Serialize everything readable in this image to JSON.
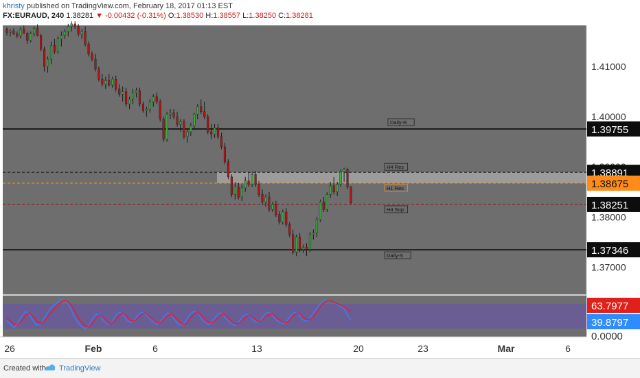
{
  "header": {
    "user": "khristy",
    "published": "published on TradingView.com, February 18, 2017 01:13 EST",
    "symbol": "FX:EURAUD, 240",
    "last": "1.38281",
    "change": "-0.00432 (-0.31%)",
    "o_label": "O:",
    "o": "1.38530",
    "h_label": "H:",
    "h": "1.38557",
    "l_label": "L:",
    "l": "1.38250",
    "c_label": "C:",
    "c": "1.38281"
  },
  "footer": {
    "created": "Created with",
    "brand": "TradingView"
  },
  "colors": {
    "background": "#6e6e6e",
    "up": "#3fa83f",
    "down": "#b01515",
    "wick": "#1a1a1a",
    "orange": "#ff8c1a",
    "stoch_k": "#3b7bff",
    "stoch_d": "#e01e3c",
    "stoch_band": "#6a5a9a"
  },
  "chart_data": {
    "type": "candlestick",
    "symbol": "FX:EURAUD",
    "timeframe": "240",
    "ylim": [
      1.367,
      1.418
    ],
    "y_ticks": [
      "1.41000",
      "1.40000",
      "1.39000",
      "1.38000",
      "1.37000"
    ],
    "x_ticks": [
      "26",
      "Feb",
      "6",
      "13",
      "20",
      "23",
      "Mar",
      "6"
    ],
    "price_labels": [
      {
        "value": "1.39755",
        "style": "dark"
      },
      {
        "value": "1.38891",
        "style": "dark"
      },
      {
        "value": "1.38675",
        "style": "orange"
      },
      {
        "value": "1.38251",
        "style": "dark"
      },
      {
        "value": "1.37346",
        "style": "dark"
      }
    ],
    "levels": [
      {
        "label": "Daily-R",
        "value": 1.39755,
        "style": "solid"
      },
      {
        "label": "H4 Res",
        "value": 1.38891,
        "style": "dashed"
      },
      {
        "label": "H1 Res",
        "value": 1.38675,
        "style": "dashed-orange"
      },
      {
        "label": "H4 Sup",
        "value": 1.38251,
        "style": "dashed-red"
      },
      {
        "label": "Daily-S",
        "value": 1.37346,
        "style": "solid"
      }
    ],
    "zone": [
      1.38891,
      1.38675
    ],
    "candles": [
      [
        1.4175,
        1.4178,
        1.4162,
        1.4168
      ],
      [
        1.4168,
        1.4174,
        1.416,
        1.4171
      ],
      [
        1.4171,
        1.4176,
        1.4163,
        1.4165
      ],
      [
        1.4165,
        1.417,
        1.4157,
        1.4161
      ],
      [
        1.4161,
        1.4178,
        1.4156,
        1.4174
      ],
      [
        1.4174,
        1.4182,
        1.4165,
        1.4166
      ],
      [
        1.4166,
        1.4169,
        1.4145,
        1.4152
      ],
      [
        1.4152,
        1.417,
        1.4148,
        1.4166
      ],
      [
        1.4166,
        1.418,
        1.416,
        1.4176
      ],
      [
        1.4176,
        1.4184,
        1.416,
        1.4162
      ],
      [
        1.4162,
        1.4165,
        1.413,
        1.4135
      ],
      [
        1.4135,
        1.414,
        1.409,
        1.41
      ],
      [
        1.41,
        1.412,
        1.4088,
        1.4115
      ],
      [
        1.4115,
        1.415,
        1.4105,
        1.4142
      ],
      [
        1.4142,
        1.4155,
        1.4125,
        1.413
      ],
      [
        1.413,
        1.416,
        1.4125,
        1.4155
      ],
      [
        1.4155,
        1.417,
        1.414,
        1.4162
      ],
      [
        1.4162,
        1.4175,
        1.4155,
        1.417
      ],
      [
        1.417,
        1.4185,
        1.416,
        1.418
      ],
      [
        1.418,
        1.419,
        1.417,
        1.4185
      ],
      [
        1.4185,
        1.419,
        1.4175,
        1.418
      ],
      [
        1.418,
        1.4185,
        1.416,
        1.4165
      ],
      [
        1.4165,
        1.4175,
        1.4155,
        1.417
      ],
      [
        1.417,
        1.418,
        1.414,
        1.4145
      ],
      [
        1.4145,
        1.415,
        1.412,
        1.4125
      ],
      [
        1.4125,
        1.413,
        1.411,
        1.4115
      ],
      [
        1.4115,
        1.4125,
        1.409,
        1.4095
      ],
      [
        1.4095,
        1.41,
        1.407,
        1.4075
      ],
      [
        1.4075,
        1.4085,
        1.406,
        1.4065
      ],
      [
        1.4065,
        1.408,
        1.4055,
        1.4072
      ],
      [
        1.4072,
        1.4085,
        1.406,
        1.4063
      ],
      [
        1.4063,
        1.408,
        1.4058,
        1.4075
      ],
      [
        1.4075,
        1.4082,
        1.405,
        1.4055
      ],
      [
        1.4055,
        1.4065,
        1.404,
        1.4045
      ],
      [
        1.4045,
        1.406,
        1.403,
        1.405
      ],
      [
        1.405,
        1.4058,
        1.402,
        1.4025
      ],
      [
        1.4025,
        1.404,
        1.4015,
        1.4035
      ],
      [
        1.4035,
        1.4055,
        1.4025,
        1.4048
      ],
      [
        1.4048,
        1.4058,
        1.4038,
        1.4052
      ],
      [
        1.4052,
        1.4058,
        1.402,
        1.4025
      ],
      [
        1.4025,
        1.403,
        1.4008,
        1.4012
      ],
      [
        1.4012,
        1.402,
        1.4,
        1.4015
      ],
      [
        1.4015,
        1.4035,
        1.4008,
        1.403
      ],
      [
        1.403,
        1.4045,
        1.402,
        1.404
      ],
      [
        1.404,
        1.4048,
        1.4025,
        1.403
      ],
      [
        1.403,
        1.4035,
        1.399,
        1.3995
      ],
      [
        1.3995,
        1.4,
        1.395,
        1.3955
      ],
      [
        1.3955,
        1.401,
        1.395,
        1.4005
      ],
      [
        1.4005,
        1.4015,
        1.3995,
        1.4008
      ],
      [
        1.4008,
        1.4015,
        1.3995,
        1.4
      ],
      [
        1.4,
        1.401,
        1.398,
        1.3985
      ],
      [
        1.3985,
        1.3995,
        1.397,
        1.399
      ],
      [
        1.399,
        1.3995,
        1.3955,
        1.396
      ],
      [
        1.396,
        1.3975,
        1.3948,
        1.397
      ],
      [
        1.397,
        1.3988,
        1.3962,
        1.3982
      ],
      [
        1.3982,
        1.4008,
        1.3975,
        1.4005
      ],
      [
        1.4005,
        1.4025,
        1.3995,
        1.402
      ],
      [
        1.402,
        1.4035,
        1.4005,
        1.401
      ],
      [
        1.401,
        1.403,
        1.3995,
        1.4
      ],
      [
        1.4,
        1.4005,
        1.3965,
        1.397
      ],
      [
        1.397,
        1.3985,
        1.3955,
        1.3965
      ],
      [
        1.3965,
        1.3985,
        1.3958,
        1.3978
      ],
      [
        1.3978,
        1.3985,
        1.3955,
        1.396
      ],
      [
        1.396,
        1.3968,
        1.3935,
        1.394
      ],
      [
        1.394,
        1.3948,
        1.3905,
        1.391
      ],
      [
        1.391,
        1.3915,
        1.3875,
        1.388
      ],
      [
        1.388,
        1.3885,
        1.384,
        1.3845
      ],
      [
        1.3845,
        1.387,
        1.3835,
        1.386
      ],
      [
        1.386,
        1.3868,
        1.3835,
        1.384
      ],
      [
        1.384,
        1.3865,
        1.3832,
        1.3858
      ],
      [
        1.3858,
        1.388,
        1.385,
        1.3872
      ],
      [
        1.3872,
        1.389,
        1.386,
        1.3865
      ],
      [
        1.3865,
        1.389,
        1.386,
        1.3885
      ],
      [
        1.3885,
        1.3892,
        1.386,
        1.3865
      ],
      [
        1.3865,
        1.3872,
        1.384,
        1.3845
      ],
      [
        1.3845,
        1.3855,
        1.3825,
        1.383
      ],
      [
        1.383,
        1.3845,
        1.382,
        1.384
      ],
      [
        1.384,
        1.385,
        1.381,
        1.3815
      ],
      [
        1.3815,
        1.383,
        1.381,
        1.3825
      ],
      [
        1.3825,
        1.3832,
        1.38,
        1.3805
      ],
      [
        1.3805,
        1.3812,
        1.3785,
        1.379
      ],
      [
        1.379,
        1.3815,
        1.3785,
        1.381
      ],
      [
        1.381,
        1.3818,
        1.378,
        1.3785
      ],
      [
        1.3785,
        1.379,
        1.376,
        1.3765
      ],
      [
        1.3765,
        1.3775,
        1.3725,
        1.373
      ],
      [
        1.373,
        1.3765,
        1.3722,
        1.376
      ],
      [
        1.376,
        1.3768,
        1.373,
        1.3735
      ],
      [
        1.3735,
        1.3745,
        1.3728,
        1.374
      ],
      [
        1.374,
        1.3748,
        1.3722,
        1.3735
      ],
      [
        1.3735,
        1.377,
        1.373,
        1.3765
      ],
      [
        1.3765,
        1.3775,
        1.3755,
        1.3768
      ],
      [
        1.3768,
        1.38,
        1.376,
        1.3795
      ],
      [
        1.3795,
        1.3835,
        1.379,
        1.383
      ],
      [
        1.383,
        1.384,
        1.381,
        1.3815
      ],
      [
        1.3815,
        1.385,
        1.381,
        1.3845
      ],
      [
        1.3845,
        1.387,
        1.3838,
        1.3862
      ],
      [
        1.3862,
        1.388,
        1.3845,
        1.385
      ],
      [
        1.385,
        1.387,
        1.3842,
        1.3865
      ],
      [
        1.3865,
        1.3895,
        1.386,
        1.389
      ],
      [
        1.389,
        1.3898,
        1.387,
        1.3895
      ],
      [
        1.3895,
        1.3898,
        1.3855,
        1.386
      ],
      [
        1.386,
        1.3862,
        1.3825,
        1.3828
      ]
    ],
    "stochastic": {
      "ylim": [
        0,
        100
      ],
      "band": [
        20,
        80
      ],
      "labels": [
        {
          "value": "63.7977",
          "color": "#e0201a"
        },
        {
          "value": "39.8797",
          "color": "#2f8cff"
        },
        {
          "value": "0.0000",
          "color": "none"
        }
      ],
      "k": [
        40,
        30,
        22,
        35,
        50,
        62,
        55,
        40,
        28,
        30,
        45,
        60,
        72,
        80,
        88,
        92,
        85,
        70,
        50,
        35,
        25,
        20,
        28,
        45,
        55,
        50,
        38,
        30,
        35,
        50,
        60,
        55,
        42,
        35,
        40,
        52,
        60,
        55,
        45,
        38,
        30,
        35,
        48,
        58,
        52,
        40,
        30,
        28,
        40,
        55,
        62,
        58,
        45,
        35,
        30,
        38,
        50,
        58,
        52,
        40,
        32,
        28,
        35,
        48,
        55,
        50,
        40,
        35,
        42,
        55,
        60,
        52,
        42,
        35,
        32,
        40,
        52,
        60,
        55,
        42,
        38,
        45,
        58,
        70,
        82,
        90,
        88,
        85,
        80,
        75,
        70,
        55,
        40
      ],
      "d": [
        45,
        38,
        30,
        30,
        40,
        52,
        58,
        50,
        38,
        32,
        38,
        50,
        62,
        72,
        80,
        88,
        88,
        80,
        65,
        48,
        35,
        25,
        25,
        35,
        48,
        52,
        45,
        35,
        32,
        40,
        52,
        58,
        50,
        40,
        38,
        45,
        55,
        58,
        50,
        42,
        35,
        33,
        42,
        52,
        55,
        48,
        38,
        30,
        32,
        45,
        55,
        60,
        52,
        42,
        35,
        35,
        42,
        52,
        55,
        48,
        38,
        32,
        32,
        40,
        50,
        52,
        45,
        38,
        38,
        48,
        55,
        55,
        48,
        40,
        35,
        35,
        45,
        55,
        58,
        50,
        42,
        42,
        50,
        62,
        75,
        85,
        88,
        86,
        82,
        78,
        74,
        68,
        62
      ]
    }
  }
}
